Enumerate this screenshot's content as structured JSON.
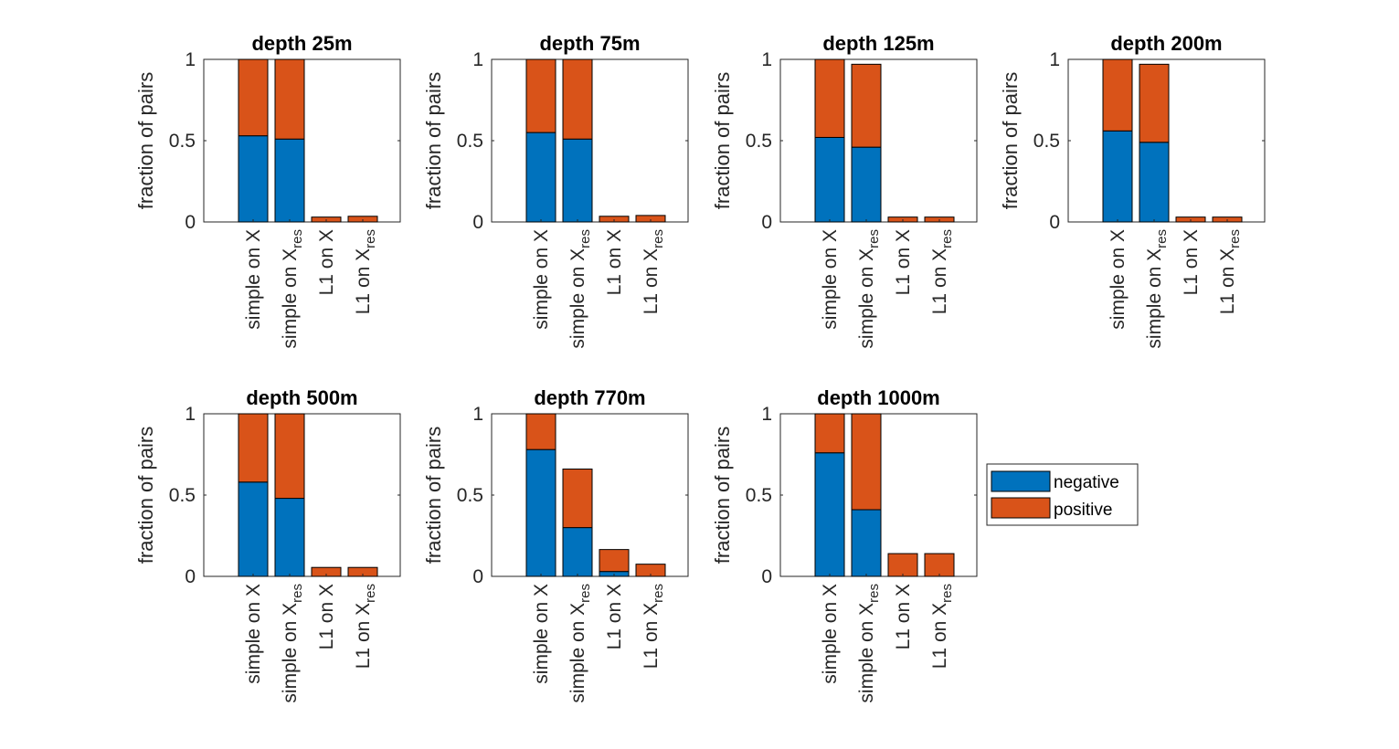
{
  "colors": {
    "negative": "#0072BD",
    "positive": "#D95319"
  },
  "chart_data": [
    {
      "type": "bar",
      "stacked": true,
      "title": "depth 25m",
      "xlabel": "",
      "ylabel": "fraction of pairs",
      "ylim": [
        0,
        1
      ],
      "yticks": [
        "0",
        "0.5",
        "1"
      ],
      "categories": [
        {
          "main": "simple on X",
          "sub": ""
        },
        {
          "main": "simple on X",
          "sub": "res"
        },
        {
          "main": "L1 on X",
          "sub": ""
        },
        {
          "main": "L1 on X",
          "sub": "res"
        }
      ],
      "series": [
        {
          "name": "negative",
          "values": [
            0.53,
            0.51,
            0.0,
            0.0
          ]
        },
        {
          "name": "positive",
          "values": [
            0.47,
            0.49,
            0.03,
            0.035
          ]
        }
      ]
    },
    {
      "type": "bar",
      "stacked": true,
      "title": "depth 75m",
      "xlabel": "",
      "ylabel": "fraction of pairs",
      "ylim": [
        0,
        1
      ],
      "yticks": [
        "0",
        "0.5",
        "1"
      ],
      "categories": [
        {
          "main": "simple on X",
          "sub": ""
        },
        {
          "main": "simple on X",
          "sub": "res"
        },
        {
          "main": "L1 on X",
          "sub": ""
        },
        {
          "main": "L1 on X",
          "sub": "res"
        }
      ],
      "series": [
        {
          "name": "negative",
          "values": [
            0.55,
            0.51,
            0.0,
            0.0
          ]
        },
        {
          "name": "positive",
          "values": [
            0.45,
            0.49,
            0.035,
            0.04
          ]
        }
      ]
    },
    {
      "type": "bar",
      "stacked": true,
      "title": "depth 125m",
      "xlabel": "",
      "ylabel": "fraction of pairs",
      "ylim": [
        0,
        1
      ],
      "yticks": [
        "0",
        "0.5",
        "1"
      ],
      "categories": [
        {
          "main": "simple on X",
          "sub": ""
        },
        {
          "main": "simple on X",
          "sub": "res"
        },
        {
          "main": "L1 on X",
          "sub": ""
        },
        {
          "main": "L1 on X",
          "sub": "res"
        }
      ],
      "series": [
        {
          "name": "negative",
          "values": [
            0.52,
            0.46,
            0.0,
            0.0
          ]
        },
        {
          "name": "positive",
          "values": [
            0.48,
            0.51,
            0.03,
            0.03
          ]
        }
      ]
    },
    {
      "type": "bar",
      "stacked": true,
      "title": "depth 200m",
      "xlabel": "",
      "ylabel": "fraction of pairs",
      "ylim": [
        0,
        1
      ],
      "yticks": [
        "0",
        "0.5",
        "1"
      ],
      "categories": [
        {
          "main": "simple on X",
          "sub": ""
        },
        {
          "main": "simple on X",
          "sub": "res"
        },
        {
          "main": "L1 on X",
          "sub": ""
        },
        {
          "main": "L1 on X",
          "sub": "res"
        }
      ],
      "series": [
        {
          "name": "negative",
          "values": [
            0.56,
            0.49,
            0.0,
            0.0
          ]
        },
        {
          "name": "positive",
          "values": [
            0.44,
            0.48,
            0.03,
            0.03
          ]
        }
      ]
    },
    {
      "type": "bar",
      "stacked": true,
      "title": "depth 500m",
      "xlabel": "",
      "ylabel": "fraction of pairs",
      "ylim": [
        0,
        1
      ],
      "yticks": [
        "0",
        "0.5",
        "1"
      ],
      "categories": [
        {
          "main": "simple on X",
          "sub": ""
        },
        {
          "main": "simple on X",
          "sub": "res"
        },
        {
          "main": "L1 on X",
          "sub": ""
        },
        {
          "main": "L1 on X",
          "sub": "res"
        }
      ],
      "series": [
        {
          "name": "negative",
          "values": [
            0.58,
            0.48,
            0.0,
            0.0
          ]
        },
        {
          "name": "positive",
          "values": [
            0.42,
            0.52,
            0.055,
            0.055
          ]
        }
      ]
    },
    {
      "type": "bar",
      "stacked": true,
      "title": "depth 770m",
      "xlabel": "",
      "ylabel": "fraction of pairs",
      "ylim": [
        0,
        1
      ],
      "yticks": [
        "0",
        "0.5",
        "1"
      ],
      "categories": [
        {
          "main": "simple on X",
          "sub": ""
        },
        {
          "main": "simple on X",
          "sub": "res"
        },
        {
          "main": "L1 on X",
          "sub": ""
        },
        {
          "main": "L1 on X",
          "sub": "res"
        }
      ],
      "series": [
        {
          "name": "negative",
          "values": [
            0.78,
            0.3,
            0.03,
            0.0
          ]
        },
        {
          "name": "positive",
          "values": [
            0.22,
            0.36,
            0.135,
            0.075
          ]
        }
      ]
    },
    {
      "type": "bar",
      "stacked": true,
      "title": "depth 1000m",
      "xlabel": "",
      "ylabel": "fraction of pairs",
      "ylim": [
        0,
        1
      ],
      "yticks": [
        "0",
        "0.5",
        "1"
      ],
      "categories": [
        {
          "main": "simple on X",
          "sub": ""
        },
        {
          "main": "simple on X",
          "sub": "res"
        },
        {
          "main": "L1 on X",
          "sub": ""
        },
        {
          "main": "L1 on X",
          "sub": "res"
        }
      ],
      "series": [
        {
          "name": "negative",
          "values": [
            0.76,
            0.41,
            0.0,
            0.0
          ]
        },
        {
          "name": "positive",
          "values": [
            0.24,
            0.59,
            0.14,
            0.14
          ]
        }
      ]
    }
  ],
  "legend": {
    "position": "right",
    "entries": [
      {
        "label": "negative",
        "series": "negative"
      },
      {
        "label": "positive",
        "series": "positive"
      }
    ]
  }
}
